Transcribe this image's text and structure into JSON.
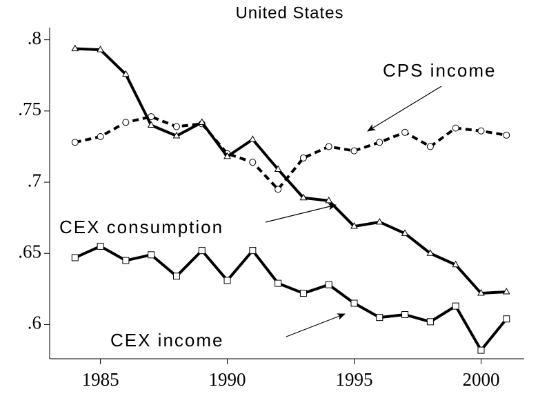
{
  "chart_data": {
    "type": "line",
    "title": "United States",
    "x": [
      1984,
      1985,
      1986,
      1987,
      1988,
      1989,
      1990,
      1991,
      1992,
      1993,
      1994,
      1995,
      1996,
      1997,
      1998,
      1999,
      2000,
      2001
    ],
    "xlim": [
      1983,
      2001.7
    ],
    "xticks": [
      1985,
      1990,
      1995,
      2000
    ],
    "ylim": [
      0.576,
      0.81
    ],
    "yticks": [
      {
        "value": 0.6,
        "label": ".6"
      },
      {
        "value": 0.65,
        "label": ".65"
      },
      {
        "value": 0.7,
        "label": ".7"
      },
      {
        "value": 0.75,
        "label": ".75"
      },
      {
        "value": 0.8,
        "label": ".8"
      }
    ],
    "grid": false,
    "series": [
      {
        "name": "CPS income",
        "color": "#000000",
        "dash": true,
        "marker": "circle",
        "values": [
          0.728,
          0.732,
          0.742,
          0.746,
          0.739,
          0.741,
          0.72,
          0.714,
          0.695,
          0.717,
          0.725,
          0.722,
          0.728,
          0.735,
          0.725,
          0.738,
          0.736,
          0.733
        ]
      },
      {
        "name": "CEX consumption",
        "color": "#000000",
        "dash": false,
        "marker": "triangle",
        "values": [
          0.7937,
          0.793,
          0.7757,
          0.74,
          0.7325,
          0.742,
          0.718,
          0.73,
          0.709,
          0.689,
          0.687,
          0.669,
          0.672,
          0.664,
          0.65,
          0.642,
          0.622,
          0.623
        ]
      },
      {
        "name": "CEX income",
        "color": "#000000",
        "dash": false,
        "marker": "square",
        "values": [
          0.647,
          0.655,
          0.645,
          0.649,
          0.634,
          0.652,
          0.631,
          0.652,
          0.629,
          0.622,
          0.628,
          0.615,
          0.605,
          0.607,
          0.602,
          0.613,
          0.582,
          0.604
        ]
      }
    ]
  }
}
